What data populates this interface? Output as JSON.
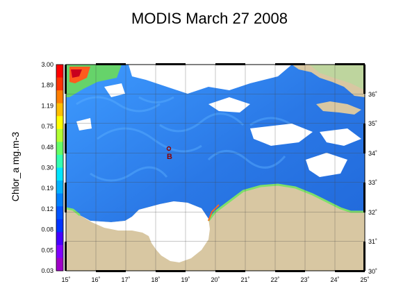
{
  "title": "MODIS March 27 2008",
  "colorbar": {
    "label": "Chlor_a mg.m-3",
    "ticks": [
      "3.00",
      "1.89",
      "1.19",
      "0.75",
      "0.48",
      "0.30",
      "0.19",
      "0.12",
      "0.08",
      "0.05",
      "0.03"
    ],
    "colors": [
      "#ff0000",
      "#ff3300",
      "#ff7f00",
      "#ffbf00",
      "#ffff00",
      "#b2ff33",
      "#66ff66",
      "#33ffb2",
      "#00e5ff",
      "#00b2ff",
      "#0080ff",
      "#0055ff",
      "#0033ff",
      "#4400ff",
      "#8000ff",
      "#a000c8"
    ]
  },
  "map": {
    "lon_ticks": [
      "15˚",
      "16˚",
      "17˚",
      "18˚",
      "19˚",
      "20˚",
      "21˚",
      "22˚",
      "23˚",
      "24˚",
      "25˚"
    ],
    "lat_ticks": [
      "36˚",
      "35˚",
      "34˚",
      "33˚",
      "32˚",
      "31˚",
      "30˚"
    ],
    "marker_label": "B",
    "colors": {
      "sea": "#2a7de8",
      "land": "#d8c7a2",
      "cloud": "#ffffff",
      "coastal": "#7ee06a"
    }
  }
}
